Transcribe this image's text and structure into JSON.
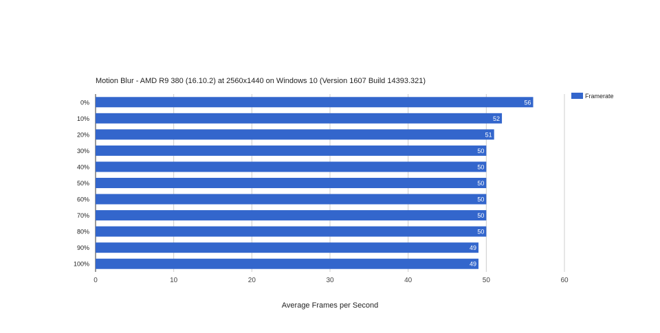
{
  "chart_data": {
    "type": "bar",
    "orientation": "horizontal",
    "title": "Motion Blur - AMD R9 380 (16.10.2) at 2560x1440 on Windows 10 (Version 1607 Build 14393.321)",
    "xlabel": "Average Frames per Second",
    "ylabel": "",
    "categories": [
      "0%",
      "10%",
      "20%",
      "30%",
      "40%",
      "50%",
      "60%",
      "70%",
      "80%",
      "90%",
      "100%"
    ],
    "series": [
      {
        "name": "Framerate",
        "color": "#3366cc",
        "values": [
          56,
          52,
          51,
          50,
          50,
          50,
          50,
          50,
          50,
          49,
          49
        ]
      }
    ],
    "xlim": [
      0,
      60
    ],
    "xticks": [
      0,
      10,
      20,
      30,
      40,
      50,
      60
    ],
    "grid": true,
    "legend": "right",
    "data_labels": true
  }
}
